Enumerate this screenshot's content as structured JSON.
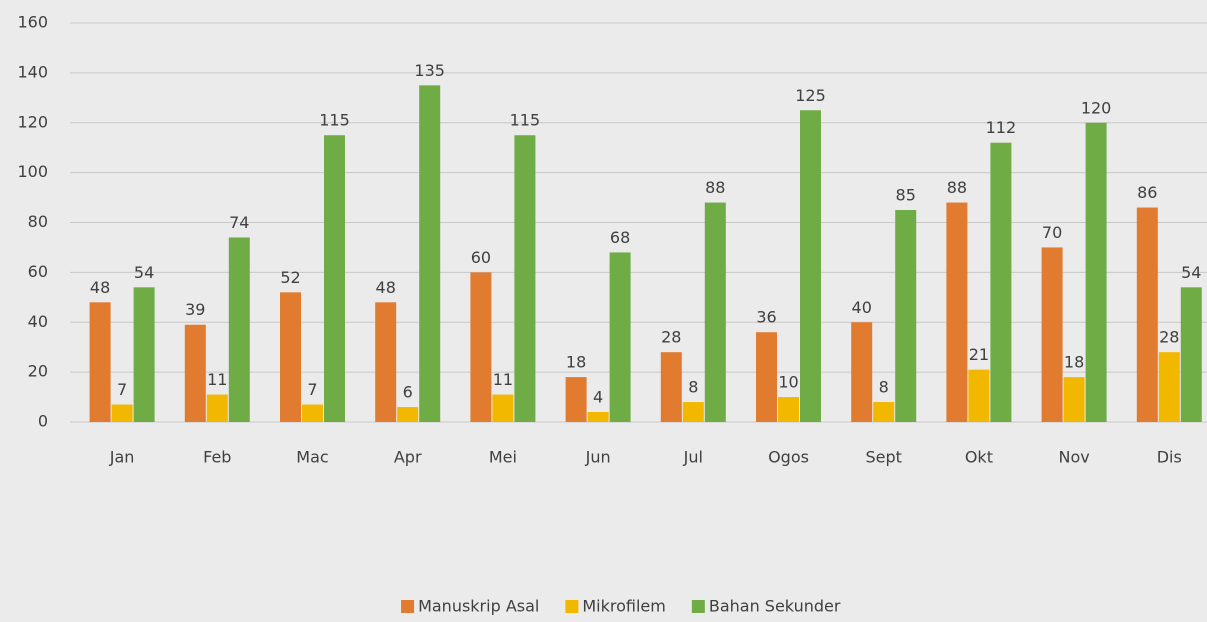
{
  "chart_data": {
    "type": "bar",
    "categories": [
      "Jan",
      "Feb",
      "Mac",
      "Apr",
      "Mei",
      "Jun",
      "Jul",
      "Ogos",
      "Sept",
      "Okt",
      "Nov",
      "Dis"
    ],
    "series": [
      {
        "name": "Manuskrip Asal",
        "color": "#e07b30",
        "values": [
          48,
          39,
          52,
          48,
          60,
          18,
          28,
          36,
          40,
          88,
          70,
          86
        ]
      },
      {
        "name": "Mikrofilem",
        "color": "#f2b800",
        "values": [
          7,
          11,
          7,
          6,
          11,
          4,
          8,
          10,
          8,
          21,
          18,
          28
        ]
      },
      {
        "name": "Bahan Sekunder",
        "color": "#6fac46",
        "values": [
          54,
          74,
          115,
          135,
          115,
          68,
          88,
          125,
          85,
          112,
          120,
          54
        ]
      }
    ],
    "ylim": [
      0,
      160
    ],
    "yticks": [
      0,
      20,
      40,
      60,
      80,
      100,
      120,
      140,
      160
    ],
    "grid": true,
    "legend": "bottom"
  }
}
